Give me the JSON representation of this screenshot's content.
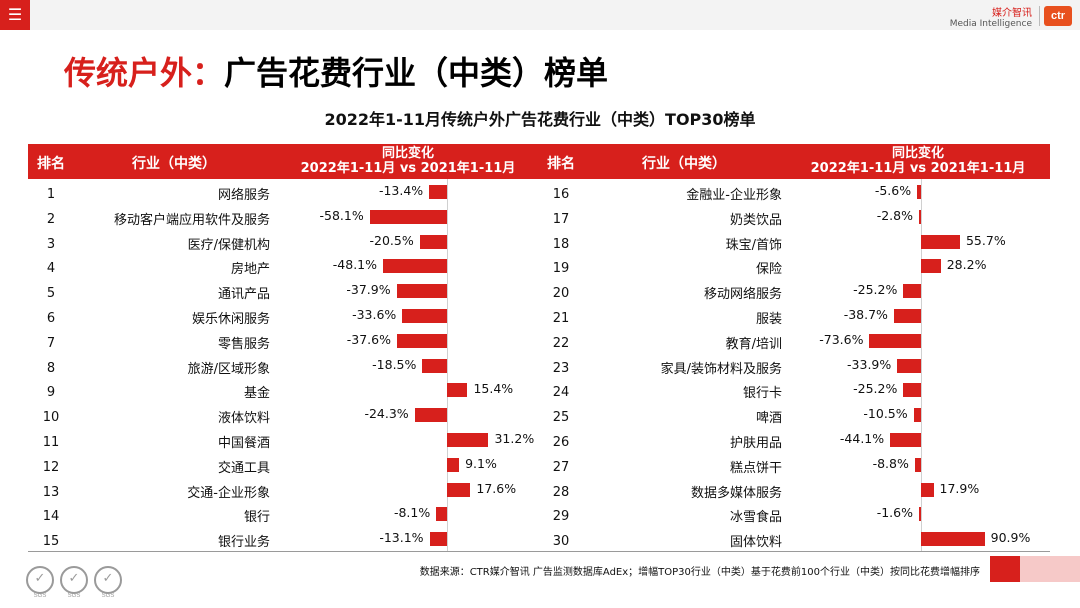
{
  "header": {
    "menu_icon": "☰",
    "brand_cn": "媒介智讯",
    "brand_en": "Media Intelligence",
    "brand_logo": "ctr",
    "accent_color": "#d7201c"
  },
  "title": {
    "highlight": "传统户外：",
    "rest": "广告花费行业（中类）榜单"
  },
  "subtitle": "2022年1-11月传统户外广告花费行业（中类）TOP30榜单",
  "table_headers": {
    "rank": "排名",
    "industry": "行业（中类）",
    "change_line1": "同比变化",
    "change_line2": "2022年1-11月 vs 2021年1-11月"
  },
  "chart_data": {
    "type": "bar",
    "title": "2022年1-11月传统户外广告花费行业（中类）TOP30榜单",
    "ylabel": "同比变化 2022年1-11月 vs 2021年1-11月",
    "unit": "%",
    "ranks": [
      1,
      2,
      3,
      4,
      5,
      6,
      7,
      8,
      9,
      10,
      11,
      12,
      13,
      14,
      15,
      16,
      17,
      18,
      19,
      20,
      21,
      22,
      23,
      24,
      25,
      26,
      27,
      28,
      29,
      30
    ],
    "categories": [
      "网络服务",
      "移动客户端应用软件及服务",
      "医疗/保健机构",
      "房地产",
      "通讯产品",
      "娱乐休闲服务",
      "零售服务",
      "旅游/区域形象",
      "基金",
      "液体饮料",
      "中国餐酒",
      "交通工具",
      "交通-企业形象",
      "银行",
      "银行业务",
      "金融业-企业形象",
      "奶类饮品",
      "珠宝/首饰",
      "保险",
      "移动网络服务",
      "服装",
      "教育/培训",
      "家具/装饰材料及服务",
      "银行卡",
      "啤酒",
      "护肤用品",
      "糕点饼干",
      "数据多媒体服务",
      "冰雪食品",
      "固体饮料"
    ],
    "values": [
      -13.4,
      -58.1,
      -20.5,
      -48.1,
      -37.9,
      -33.6,
      -37.6,
      -18.5,
      15.4,
      -24.3,
      31.2,
      9.1,
      17.6,
      -8.1,
      -13.1,
      -5.6,
      -2.8,
      55.7,
      28.2,
      -25.2,
      -38.7,
      -73.6,
      -33.9,
      -25.2,
      -10.5,
      -44.1,
      -8.8,
      17.9,
      -1.6,
      90.9
    ],
    "labels": [
      "-13.4%",
      "-58.1%",
      "-20.5%",
      "-48.1%",
      "-37.9%",
      "-33.6%",
      "-37.6%",
      "-18.5%",
      "15.4%",
      "-24.3%",
      "31.2%",
      "9.1%",
      "17.6%",
      "-8.1%",
      "-13.1%",
      "-5.6%",
      "-2.8%",
      "55.7%",
      "28.2%",
      "-25.2%",
      "-38.7%",
      "-73.6%",
      "-33.9%",
      "-25.2%",
      "-10.5%",
      "-44.1%",
      "-8.8%",
      "17.9%",
      "-1.6%",
      "90.9%"
    ],
    "bar_color": "#d7201c"
  },
  "footer": {
    "source": "数据来源：CTR媒介智讯 广告监测数据库AdEx；增幅TOP30行业（中类）基于花费前100个行业（中类）按同比花费增幅排序",
    "cert_label": "SGS"
  }
}
